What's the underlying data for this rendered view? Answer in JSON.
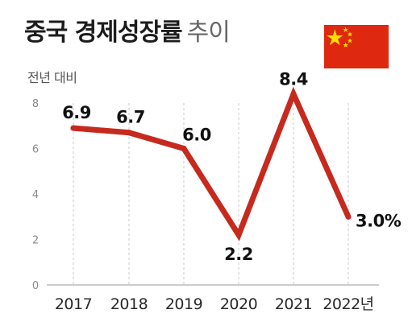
{
  "title": "중국 경제성장률",
  "title_suffix": "추이",
  "subtitle": "전년 대비",
  "flag_icon": "china-flag-icon",
  "colors": {
    "line": "#c62a1e",
    "flag_red": "#de2910",
    "flag_star": "#ffde00",
    "grid": "#c8c8c8"
  },
  "chart_data": {
    "type": "line",
    "title": "중국 경제성장률 추이",
    "ylabel": "전년 대비",
    "xlabel": "",
    "categories": [
      "2017",
      "2018",
      "2019",
      "2020",
      "2021",
      "2022년"
    ],
    "series": [
      {
        "values": [
          6.9,
          6.7,
          6.0,
          2.2,
          8.4,
          3.0
        ],
        "labels": [
          "6.9",
          "6.7",
          "6.0",
          "2.2",
          "8.4",
          "3.0%"
        ]
      }
    ],
    "ylim": [
      0,
      8
    ],
    "yticks": [
      "0",
      "2",
      "4",
      "6",
      "8"
    ],
    "grid": "vertical-dashed",
    "legend": "none"
  }
}
